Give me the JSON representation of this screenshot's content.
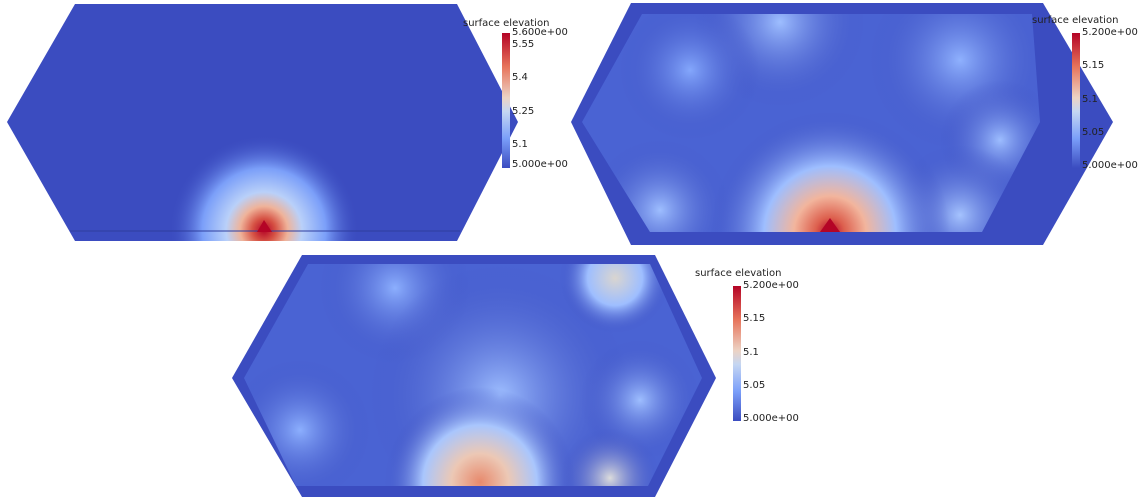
{
  "panels": [
    {
      "name": "panel-1",
      "colorbar": {
        "title": "surface elevation",
        "ticks": [
          "5.600e+00",
          "5.55",
          "5.4",
          "5.25",
          "5.1",
          "5.000e+00"
        ],
        "range": [
          5.0,
          5.6
        ]
      }
    },
    {
      "name": "panel-2",
      "colorbar": {
        "title": "surface elevation",
        "ticks": [
          "5.200e+00",
          "5.15",
          "5.1",
          "5.05",
          "5.000e+00"
        ],
        "range": [
          5.0,
          5.2
        ]
      }
    },
    {
      "name": "panel-3",
      "colorbar": {
        "title": "surface elevation",
        "ticks": [
          "5.200e+00",
          "5.15",
          "5.1",
          "5.05",
          "5.000e+00"
        ],
        "range": [
          5.0,
          5.2
        ]
      }
    }
  ],
  "colors": {
    "low": "#3b4cc0",
    "mid": "#dddddd",
    "high": "#b40426"
  }
}
